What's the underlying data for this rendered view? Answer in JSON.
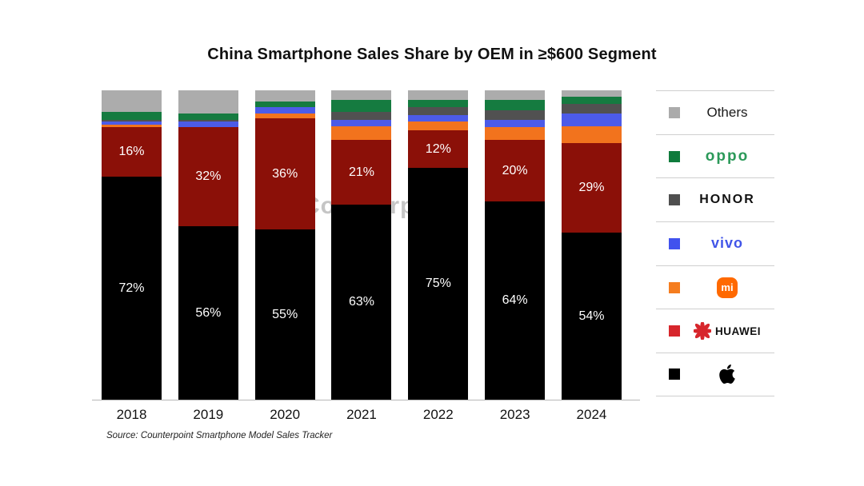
{
  "title": "China Smartphone Sales Share by OEM in ≥$600 Segment",
  "source": "Source: Counterpoint Smartphone Model Sales Tracker",
  "watermark": "Counterpoint",
  "legend": {
    "position": "right",
    "entries": [
      {
        "key": "others",
        "label": "Others",
        "swatch": "#ABABAB",
        "logo_color": "#1a1a1a"
      },
      {
        "key": "oppo",
        "label": "oppo",
        "swatch": "#0F7B3C",
        "logo_color": "#2B9959"
      },
      {
        "key": "honor",
        "label": "HONOR",
        "swatch": "#4F4F4F",
        "logo_color": "#111111"
      },
      {
        "key": "vivo",
        "label": "vivo",
        "swatch": "#4152EE",
        "logo_color": "#4155E8"
      },
      {
        "key": "mi",
        "label": "mi",
        "swatch": "#F57D1F",
        "logo_color": "#FF6900"
      },
      {
        "key": "huawei",
        "label": "HUAWEI",
        "swatch": "#D7262C",
        "logo_color": "#D7262C"
      },
      {
        "key": "apple",
        "label": "",
        "swatch": "#000000",
        "logo_color": "#000000"
      }
    ]
  },
  "chart_data": {
    "type": "bar",
    "stacked": true,
    "title": "China Smartphone Sales Share by OEM in ≥$600 Segment",
    "categories": [
      "2018",
      "2019",
      "2020",
      "2021",
      "2022",
      "2023",
      "2024"
    ],
    "series": [
      {
        "name": "Apple",
        "color": "#000000",
        "values": [
          72,
          56,
          55,
          63,
          75,
          64,
          54
        ],
        "labels": [
          "72%",
          "56%",
          "55%",
          "63%",
          "75%",
          "64%",
          "54%"
        ]
      },
      {
        "name": "HUAWEI",
        "color": "#8B1008",
        "values": [
          16,
          32,
          36,
          21,
          12,
          20,
          29
        ],
        "labels": [
          "16%",
          "32%",
          "36%",
          "21%",
          "12%",
          "20%",
          "29%"
        ]
      },
      {
        "name": "Mi",
        "color": "#F2731D",
        "values": [
          1,
          0,
          1.5,
          4.5,
          3,
          4,
          5.5
        ]
      },
      {
        "name": "vivo",
        "color": "#4C5BE8",
        "values": [
          1,
          2,
          2,
          2,
          2,
          2.5,
          4
        ]
      },
      {
        "name": "HONOR",
        "color": "#515151",
        "values": [
          0.5,
          0.5,
          0,
          2.5,
          2.5,
          3,
          3
        ]
      },
      {
        "name": "OPPO",
        "color": "#157B40",
        "values": [
          2.5,
          2,
          2,
          4,
          2.5,
          3.5,
          2.5
        ]
      },
      {
        "name": "Others",
        "color": "#ACACAC",
        "values": [
          7,
          7.5,
          3.5,
          3,
          3,
          3,
          2
        ]
      }
    ],
    "series_order_note": "series listed bottom-to-top of stack",
    "ylim": [
      0,
      100
    ],
    "grid": false,
    "legend_position": "right",
    "xlabel": "",
    "ylabel": ""
  }
}
